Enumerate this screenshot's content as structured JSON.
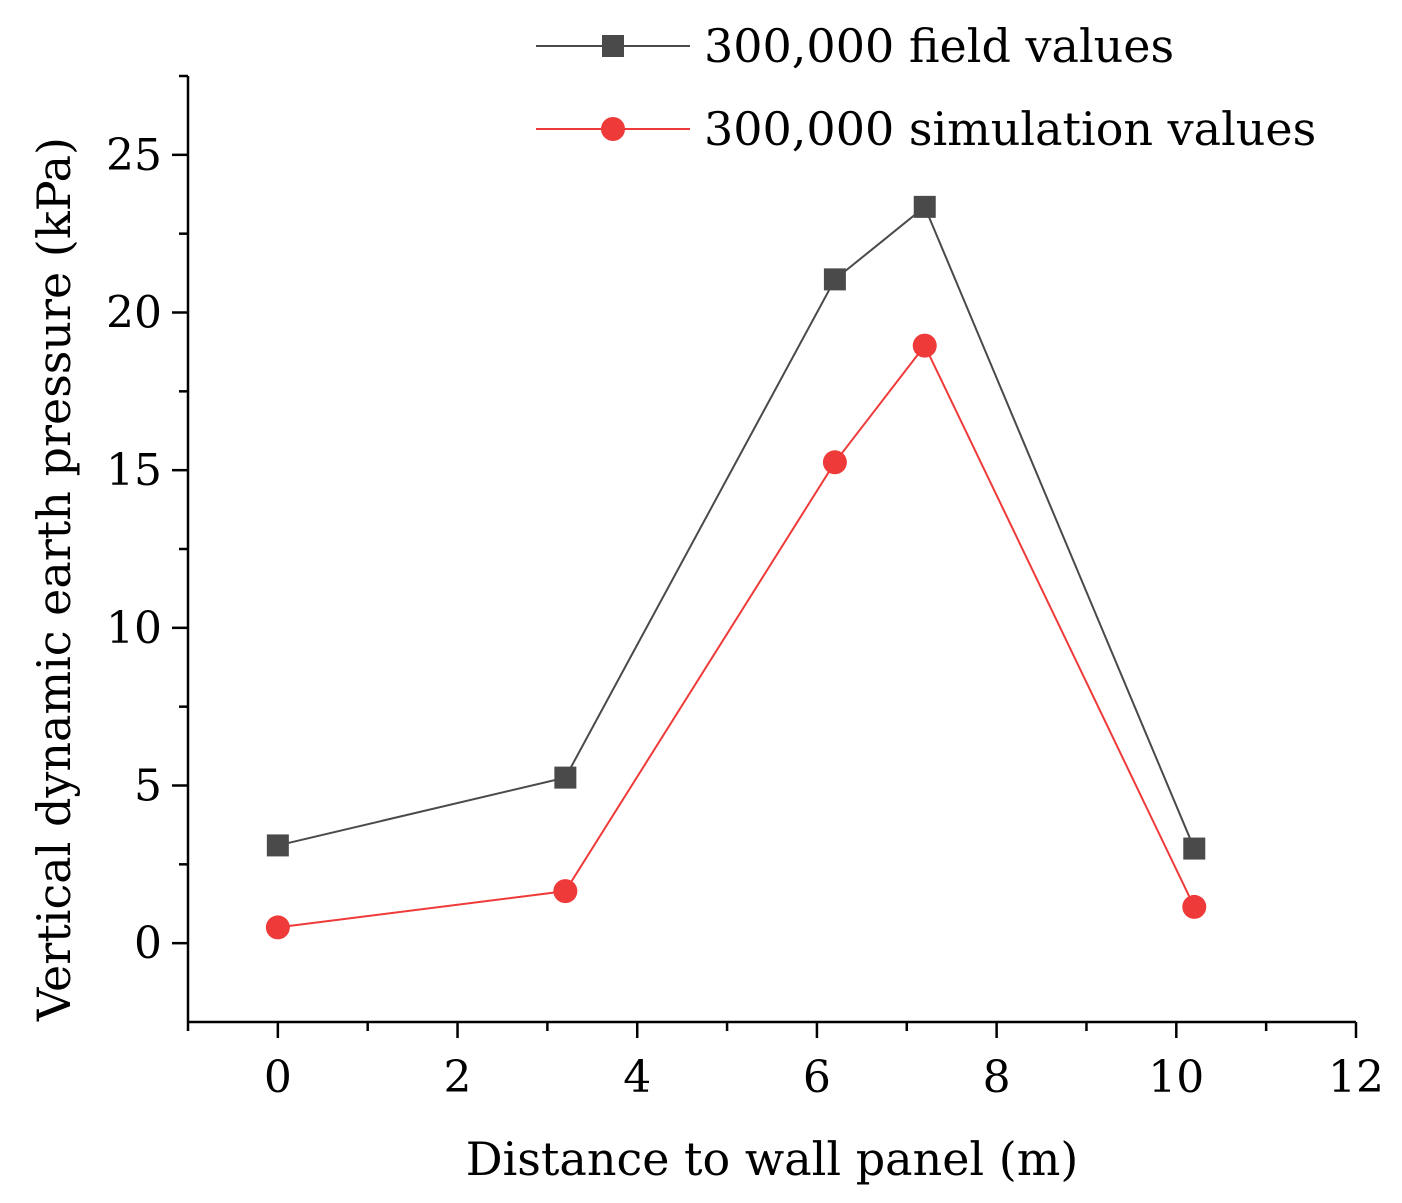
{
  "chart_data": {
    "type": "line",
    "title": "",
    "xlabel": "Distance to wall panel (m)",
    "ylabel": "Vertical dynamic earth pressure (kPa)",
    "xlim": [
      -1,
      12
    ],
    "ylim": [
      -2.5,
      27.5
    ],
    "xticks": [
      0,
      2,
      4,
      6,
      8,
      10,
      12
    ],
    "xtick_labels": [
      "0",
      "2",
      "4",
      "6",
      "8",
      "10",
      "12"
    ],
    "yticks": [
      0,
      5,
      10,
      15,
      20,
      25
    ],
    "ytick_labels": [
      "0",
      "5",
      "10",
      "15",
      "20",
      "25"
    ],
    "x_minor_step": 1,
    "y_minor_step": 2.5,
    "grid": false,
    "legend_position": "top-right",
    "series": [
      {
        "name": "300,000 field values",
        "marker": "square",
        "color": "#4a4a4a",
        "x": [
          0,
          3.2,
          6.2,
          7.2,
          10.2
        ],
        "y": [
          3.1,
          5.25,
          21.05,
          23.35,
          3.0
        ]
      },
      {
        "name": "300,000 simulation values",
        "marker": "circle",
        "color": "#ef3a3a",
        "x": [
          0,
          3.2,
          6.2,
          7.2,
          10.2
        ],
        "y": [
          0.5,
          1.65,
          15.25,
          18.95,
          1.15
        ]
      }
    ]
  }
}
